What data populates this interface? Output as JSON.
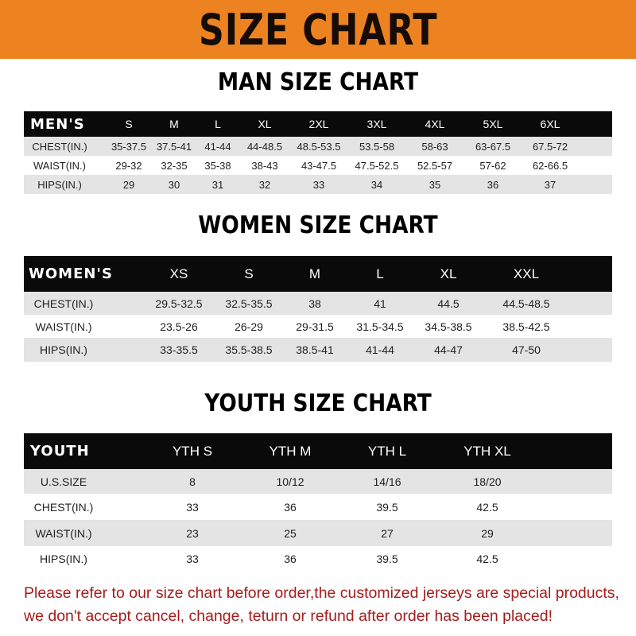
{
  "banner": {
    "title": "SIZE CHART",
    "color": "#ec8320"
  },
  "men": {
    "title": "MAN SIZE CHART",
    "header": [
      "MEN'S",
      "S",
      "M",
      "L",
      "XL",
      "2XL",
      "3XL",
      "4XL",
      "5XL",
      "6XL"
    ],
    "rows": [
      [
        "CHEST(IN.)",
        "35-37.5",
        "37.5-41",
        "41-44",
        "44-48.5",
        "48.5-53.5",
        "53.5-58",
        "58-63",
        "63-67.5",
        "67.5-72"
      ],
      [
        "WAIST(IN.)",
        "29-32",
        "32-35",
        "35-38",
        "38-43",
        "43-47.5",
        "47.5-52.5",
        "52.5-57",
        "57-62",
        "62-66.5"
      ],
      [
        "HIPS(IN.)",
        "29",
        "30",
        "31",
        "32",
        "33",
        "34",
        "35",
        "36",
        "37"
      ]
    ]
  },
  "women": {
    "title": "WOMEN SIZE CHART",
    "header": [
      "WOMEN'S",
      "XS",
      "S",
      "M",
      "L",
      "XL",
      "XXL"
    ],
    "rows": [
      [
        "CHEST(IN.)",
        "29.5-32.5",
        "32.5-35.5",
        "38",
        "41",
        "44.5",
        "44.5-48.5"
      ],
      [
        "WAIST(IN.)",
        "23.5-26",
        "26-29",
        "29-31.5",
        "31.5-34.5",
        "34.5-38.5",
        "38.5-42.5"
      ],
      [
        "HIPS(IN.)",
        "33-35.5",
        "35.5-38.5",
        "38.5-41",
        "41-44",
        "44-47",
        "47-50"
      ]
    ]
  },
  "youth": {
    "title": "YOUTH SIZE CHART",
    "header": [
      "YOUTH",
      "YTH S",
      "YTH M",
      "YTH L",
      "YTH XL"
    ],
    "rows": [
      [
        "U.S.SIZE",
        "8",
        "10/12",
        "14/16",
        "18/20"
      ],
      [
        "CHEST(IN.)",
        "33",
        "36",
        "39.5",
        "42.5"
      ],
      [
        "WAIST(IN.)",
        "23",
        "25",
        "27",
        "29"
      ],
      [
        "HIPS(IN.)",
        "33",
        "36",
        "39.5",
        "42.5"
      ]
    ]
  },
  "note": {
    "line1": "Please refer to our size chart before order,the customized jerseys are special products,",
    "line2": "we don't accept cancel, change, teturn or refund after order has been placed!",
    "color": "#a51d1d"
  }
}
